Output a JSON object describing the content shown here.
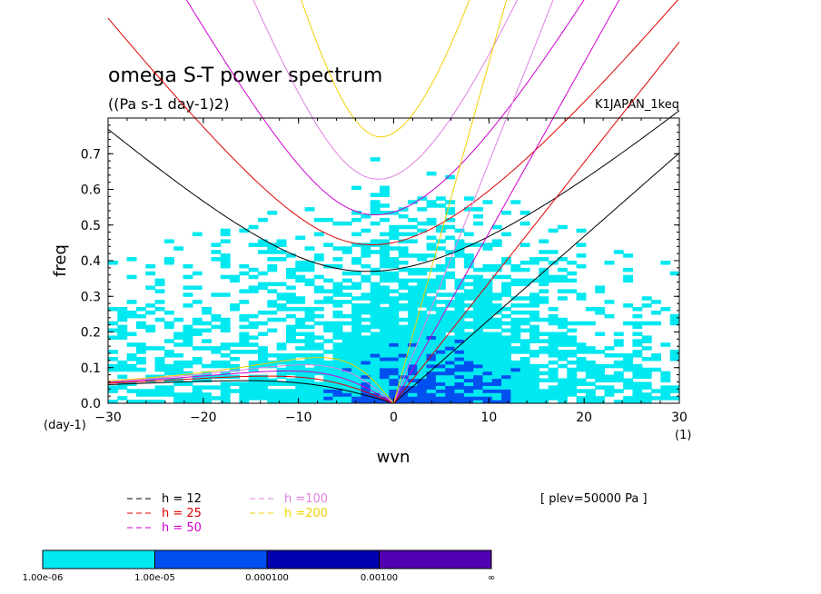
{
  "chart_data": {
    "type": "heatmap",
    "title": "omega S-T power spectrum",
    "subtitle": "((Pa s-1 day-1)2)",
    "run_label": "K1JAPAN_1keq",
    "xlabel": "wvn",
    "ylabel": "freq",
    "x_unit": "(1)",
    "y_unit": "(day-1)",
    "xlim": [
      -30,
      30
    ],
    "ylim": [
      0,
      0.8
    ],
    "x_ticks": [
      -30,
      -20,
      -10,
      0,
      10,
      20,
      30
    ],
    "y_ticks": [
      0.0,
      0.1,
      0.2,
      0.3,
      0.4,
      0.5,
      0.6,
      0.7
    ],
    "x_tick_labels": [
      "−30",
      "−20",
      "−10",
      "0",
      "10",
      "20",
      "30"
    ],
    "y_tick_labels": [
      "0.0",
      "0.1",
      "0.2",
      "0.3",
      "0.4",
      "0.5",
      "0.6",
      "0.7"
    ],
    "level_note": "[ plev=50000 Pa ]",
    "colorbar": {
      "bounds": [
        "1.00e-06",
        "1.00e-05",
        "0.000100",
        "0.00100",
        "∞"
      ],
      "colors": [
        "#00e8f0",
        "#0050f0",
        "#0000b0",
        "#5000b0"
      ]
    },
    "series": [
      {
        "name": "h = 12",
        "color": "#000000",
        "h": 12
      },
      {
        "name": "h = 25",
        "color": "#e00000",
        "h": 25
      },
      {
        "name": "h = 50",
        "color": "#d000d0",
        "h": 50
      },
      {
        "name": "h =100",
        "color": "#e080e0",
        "h": 100
      },
      {
        "name": "h =200",
        "color": "#f0d000",
        "h": 200
      }
    ]
  }
}
